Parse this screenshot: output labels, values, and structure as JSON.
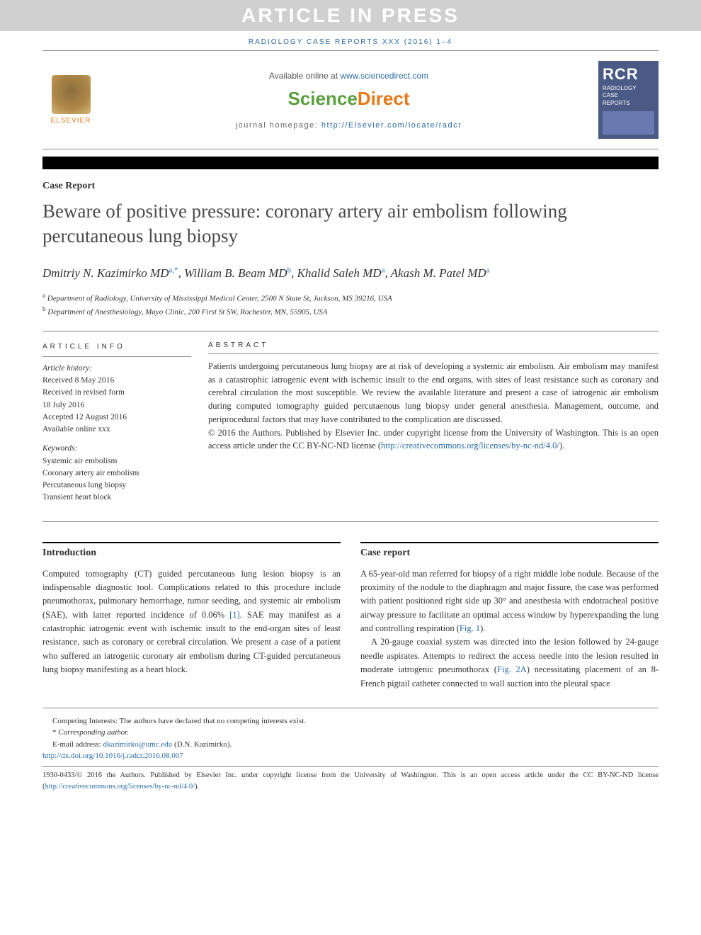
{
  "watermark": "ARTICLE IN PRESS",
  "running_head": "RADIOLOGY CASE REPORTS XXX (2016) 1–4",
  "header": {
    "elsevier": "ELSEVIER",
    "available_text": "Available online at ",
    "available_link": "www.sciencedirect.com",
    "sd_part1": "Science",
    "sd_part2": "Direct",
    "homepage_label": "journal homepage: ",
    "homepage_link": "http://Elsevier.com/locate/radcr",
    "cover_abbr": "RCR",
    "cover_line1": "RADIOLOGY",
    "cover_line2": "CASE",
    "cover_line3": "REPORTS"
  },
  "article_type": "Case Report",
  "title": "Beware of positive pressure: coronary artery air embolism following percutaneous lung biopsy",
  "authors_html": "Dmitriy N. Kazimirko MD",
  "authors": {
    "a1_name": "Dmitriy N. Kazimirko MD",
    "a1_aff": "a",
    "a1_corr": ",*",
    "a2_name": "William B. Beam MD",
    "a2_aff": "b",
    "a3_name": "Khalid Saleh MD",
    "a3_aff": "a",
    "a4_name": "Akash M. Patel MD",
    "a4_aff": "a"
  },
  "affiliations": {
    "a": "Department of Radiology, University of Mississippi Medical Center, 2500 N State St, Jackson, MS 39216, USA",
    "b": "Department of Anesthesiology, Mayo Clinic, 200 First St SW, Rochester, MN, 55905, USA"
  },
  "article_info": {
    "heading": "ARTICLE INFO",
    "history_label": "Article history:",
    "received": "Received 8 May 2016",
    "revised1": "Received in revised form",
    "revised2": "18 July 2016",
    "accepted": "Accepted 12 August 2016",
    "online": "Available online xxx",
    "keywords_label": "Keywords:",
    "kw1": "Systemic air embolism",
    "kw2": "Coronary artery air embolism",
    "kw3": "Percutaneous lung biopsy",
    "kw4": "Transient heart block"
  },
  "abstract": {
    "heading": "ABSTRACT",
    "text": "Patients undergoing percutaneous lung biopsy are at risk of developing a systemic air embolism. Air embolism may manifest as a catastrophic iatrogenic event with ischemic insult to the end organs, with sites of least resistance such as coronary and cerebral circulation the most susceptible. We review the available literature and present a case of iatrogenic air embolism during computed tomography guided percutaenous lung biopsy under general anesthesia. Management, outcome, and periprocedural factors that may have contributed to the complication are discussed.",
    "copyright": "© 2016 the Authors. Published by Elsevier Inc. under copyright license from the University of Washington. This is an open access article under the CC BY-NC-ND license (",
    "cc_link": "http://creativecommons.org/licenses/by-nc-nd/4.0/",
    "copyright_close": ")."
  },
  "sections": {
    "intro_heading": "Introduction",
    "intro_text": "Computed tomography (CT) guided percutaneous lung lesion biopsy is an indispensable diagnostic tool. Complications related to this procedure include pneumothorax, pulmonary hemorrhage, tumor seeding, and systemic air embolism (SAE), with latter reported incidence of 0.06% ",
    "intro_ref": "[1]",
    "intro_text2": ". SAE may manifest as a catastrophic iatrogenic event with ischemic insult to the end-organ sites of least resistance, such as coronary or cerebral circulation. We present a case of a patient who suffered an iatrogenic coronary air embolism during CT-guided percutaneous lung biopsy manifesting as a heart block.",
    "case_heading": "Case report",
    "case_p1a": "A 65-year-old man referred for biopsy of a right middle lobe nodule. Because of the proximity of the nodule to the diaphragm and major fissure, the case was performed with patient positioned right side up 30° and anesthesia with endotracheal positive airway pressure to facilitate an optimal access window by hyperexpanding the lung and controlling respiration (",
    "case_fig1": "Fig. 1",
    "case_p1b": ").",
    "case_p2a": "A 20-gauge coaxial system was directed into the lesion followed by 24-gauge needle aspirates. Attempts to redirect the access needle into the lesion resulted in moderate iatrogenic pneumothorax (",
    "case_fig2": "Fig. 2A",
    "case_p2b": ") necessitating placement of an 8-French pigtail catheter connected to wall suction into the pleural space"
  },
  "footer": {
    "competing": "Competing Interests: The authors have declared that no competing interests exist.",
    "corr_label": "Corresponding author.",
    "email_label": "E-mail address: ",
    "email": "dkazimirko@umc.edu",
    "email_author": " (D.N. Kazimirko).",
    "doi": "http://dx.doi.org/10.1016/j.radcr.2016.08.007",
    "issn_line": "1930-0433/© 2016 the Authors. Published by Elsevier Inc. under copyright license from the University of Washington. This is an open access article under the CC BY-NC-ND license (",
    "cc_link": "http://creativecommons.org/licenses/by-nc-nd/4.0/",
    "issn_close": ")."
  },
  "colors": {
    "link": "#2a6ba8",
    "orange": "#e67817",
    "green": "#5a9e3e",
    "cover_bg": "#4a5a85",
    "watermark_bg": "#d0d0d0"
  }
}
